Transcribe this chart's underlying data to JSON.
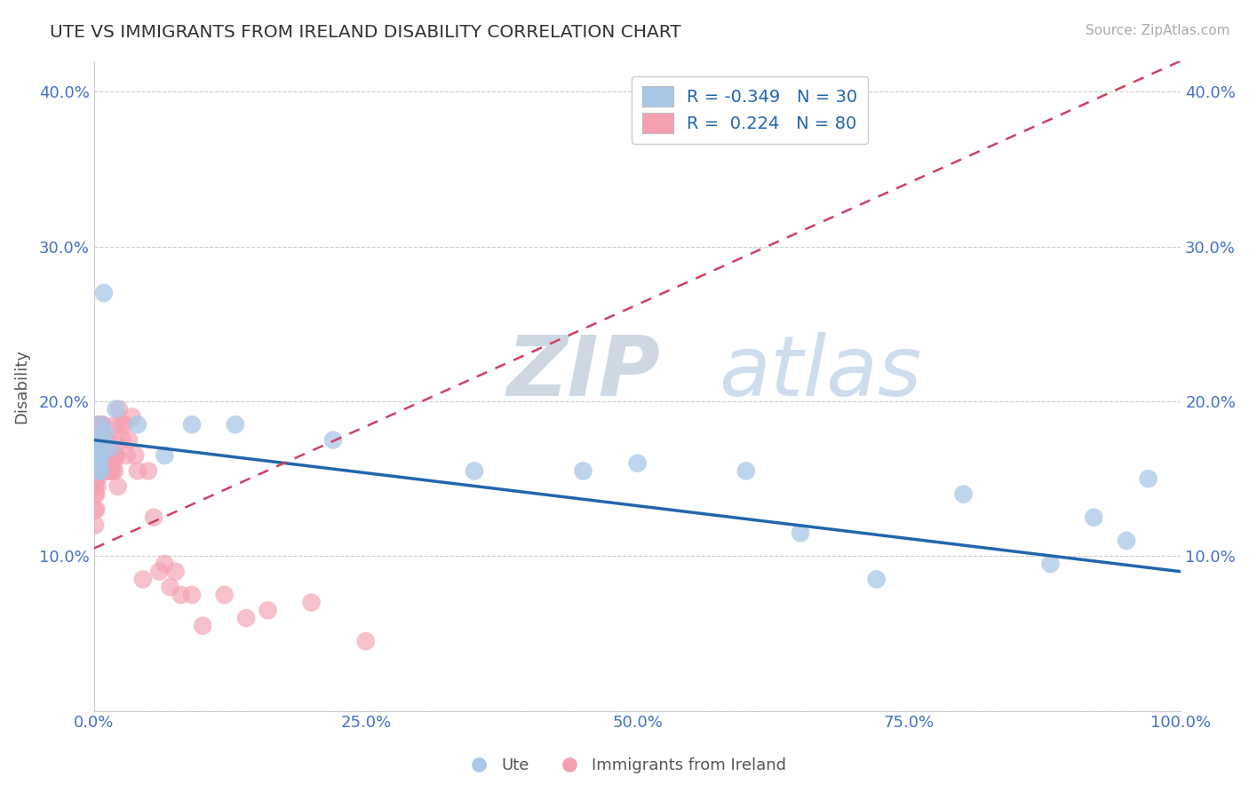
{
  "title": "UTE VS IMMIGRANTS FROM IRELAND DISABILITY CORRELATION CHART",
  "source_text": "Source: ZipAtlas.com",
  "ylabel": "Disability",
  "xlim": [
    0.0,
    1.0
  ],
  "ylim": [
    0.0,
    0.42
  ],
  "xticks": [
    0.0,
    0.25,
    0.5,
    0.75,
    1.0
  ],
  "xticklabels": [
    "0.0%",
    "25.0%",
    "50.0%",
    "75.0%",
    "100.0%"
  ],
  "yticks": [
    0.0,
    0.1,
    0.2,
    0.3,
    0.4
  ],
  "yticklabels": [
    "",
    "10.0%",
    "20.0%",
    "30.0%",
    "40.0%"
  ],
  "ute_color": "#a8c8e8",
  "ireland_color": "#f4a0b0",
  "ute_line_color": "#2166ac",
  "ireland_line_color": "#d04060",
  "R_ute": -0.349,
  "N_ute": 30,
  "R_ireland": 0.224,
  "N_ireland": 80,
  "background_color": "#ffffff",
  "ute_points_x": [
    0.003,
    0.005,
    0.004,
    0.006,
    0.007,
    0.005,
    0.008,
    0.006,
    0.009,
    0.004,
    0.006,
    0.01,
    0.015,
    0.02,
    0.04,
    0.065,
    0.09,
    0.13,
    0.22,
    0.35,
    0.45,
    0.5,
    0.6,
    0.65,
    0.72,
    0.8,
    0.88,
    0.92,
    0.95,
    0.97
  ],
  "ute_points_y": [
    0.175,
    0.165,
    0.17,
    0.155,
    0.175,
    0.16,
    0.17,
    0.185,
    0.27,
    0.155,
    0.165,
    0.18,
    0.17,
    0.195,
    0.185,
    0.165,
    0.185,
    0.185,
    0.175,
    0.155,
    0.155,
    0.16,
    0.155,
    0.115,
    0.085,
    0.14,
    0.095,
    0.125,
    0.11,
    0.15
  ],
  "ireland_points_x": [
    0.001,
    0.001,
    0.001,
    0.001,
    0.001,
    0.002,
    0.002,
    0.002,
    0.002,
    0.002,
    0.003,
    0.003,
    0.003,
    0.003,
    0.004,
    0.004,
    0.004,
    0.005,
    0.005,
    0.005,
    0.006,
    0.006,
    0.006,
    0.007,
    0.007,
    0.007,
    0.008,
    0.008,
    0.008,
    0.009,
    0.009,
    0.01,
    0.01,
    0.01,
    0.011,
    0.011,
    0.012,
    0.012,
    0.013,
    0.013,
    0.014,
    0.014,
    0.015,
    0.015,
    0.016,
    0.016,
    0.017,
    0.017,
    0.018,
    0.018,
    0.019,
    0.019,
    0.02,
    0.02,
    0.021,
    0.022,
    0.023,
    0.025,
    0.026,
    0.028,
    0.03,
    0.032,
    0.035,
    0.038,
    0.04,
    0.045,
    0.05,
    0.055,
    0.06,
    0.065,
    0.07,
    0.075,
    0.08,
    0.09,
    0.1,
    0.12,
    0.14,
    0.16,
    0.2,
    0.25
  ],
  "ireland_points_y": [
    0.145,
    0.13,
    0.155,
    0.12,
    0.14,
    0.14,
    0.155,
    0.165,
    0.13,
    0.15,
    0.17,
    0.15,
    0.145,
    0.165,
    0.155,
    0.175,
    0.185,
    0.155,
    0.165,
    0.17,
    0.175,
    0.165,
    0.185,
    0.165,
    0.175,
    0.185,
    0.175,
    0.185,
    0.165,
    0.175,
    0.165,
    0.155,
    0.165,
    0.175,
    0.165,
    0.175,
    0.165,
    0.175,
    0.155,
    0.165,
    0.155,
    0.165,
    0.16,
    0.17,
    0.155,
    0.16,
    0.155,
    0.17,
    0.165,
    0.16,
    0.155,
    0.175,
    0.165,
    0.185,
    0.165,
    0.145,
    0.195,
    0.185,
    0.175,
    0.185,
    0.165,
    0.175,
    0.19,
    0.165,
    0.155,
    0.085,
    0.155,
    0.125,
    0.09,
    0.095,
    0.08,
    0.09,
    0.075,
    0.075,
    0.055,
    0.075,
    0.06,
    0.065,
    0.07,
    0.045
  ],
  "ute_line_x0": 0.0,
  "ute_line_y0": 0.175,
  "ute_line_x1": 1.0,
  "ute_line_y1": 0.09,
  "ireland_line_x0": 0.0,
  "ireland_line_y0": 0.105,
  "ireland_line_x1": 1.0,
  "ireland_line_y1": 0.42
}
